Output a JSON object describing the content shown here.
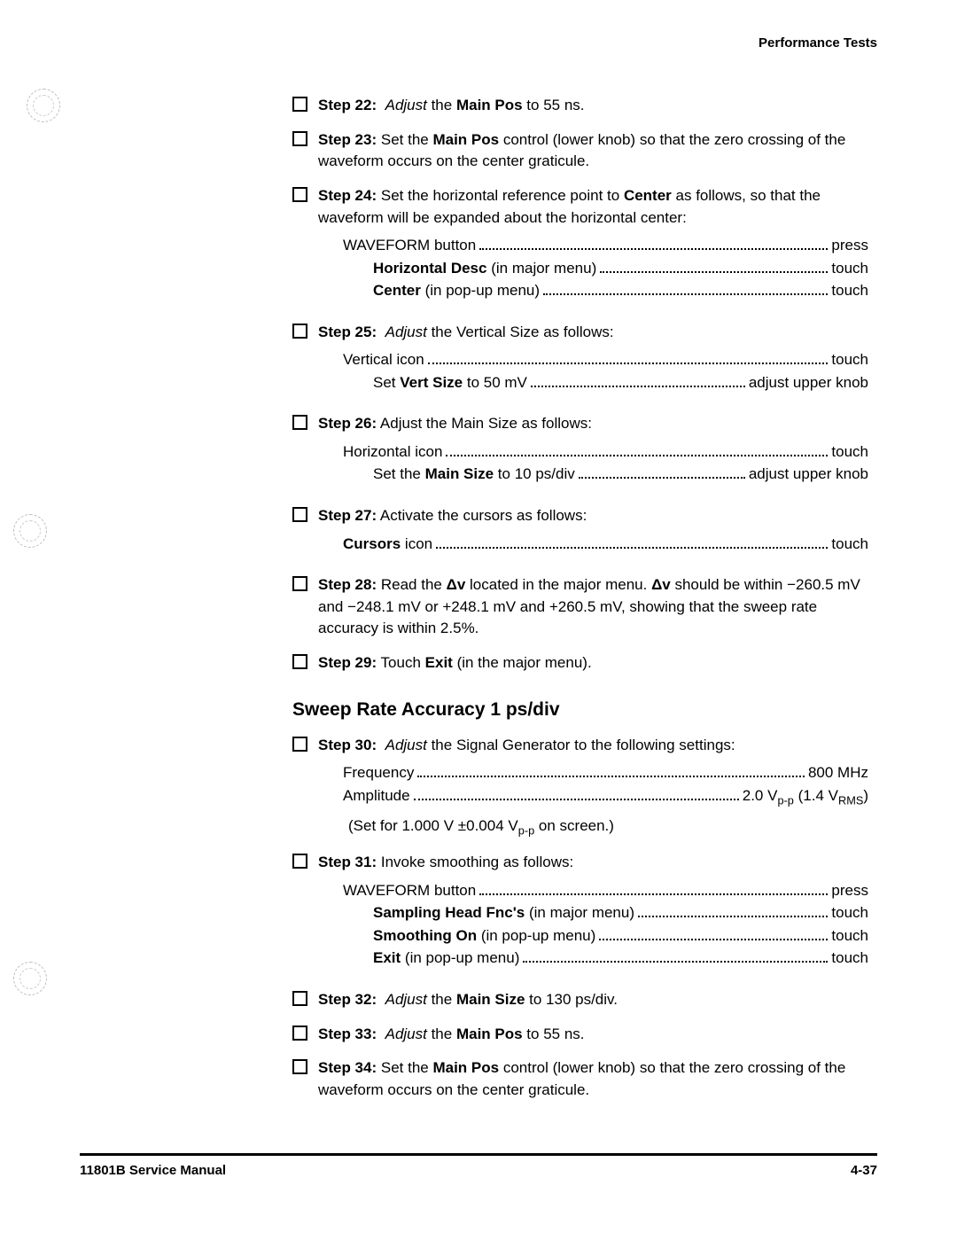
{
  "header": {
    "section": "Performance Tests"
  },
  "steps": {
    "s22": {
      "label": "Step 22:",
      "text1": "Adjust",
      "text2": " the ",
      "bold1": "Main Pos",
      "text3": " to 55 ns."
    },
    "s23": {
      "label": "Step 23:",
      "text1": "  Set the ",
      "bold1": "Main Pos",
      "text2": " control (lower knob) so that the zero crossing of the waveform occurs on the center graticule."
    },
    "s24": {
      "label": "Step 24:",
      "text1": "  Set the horizontal reference point to ",
      "bold1": "Center",
      "text2": " as follows, so that the waveform will be expanded about the horizontal center:"
    },
    "s24_settings": [
      {
        "label": "WAVEFORM button",
        "value": "press",
        "bold_label": false,
        "indent": false
      },
      {
        "label": "Horizontal Desc",
        "suffix": " (in major menu)",
        "value": "touch",
        "bold_label": true,
        "indent": true
      },
      {
        "label": "Center",
        "suffix": " (in pop-up menu)",
        "value": "touch",
        "bold_label": true,
        "indent": true
      }
    ],
    "s25": {
      "label": "Step 25:",
      "italic": "Adjust",
      "text": " the Vertical Size as follows:"
    },
    "s25_settings": [
      {
        "label": "Vertical icon",
        "value": "touch",
        "indent": false
      },
      {
        "label_pre": "Set ",
        "label_bold": "Vert Size",
        "label_post": " to 50 mV",
        "value": "adjust upper knob",
        "indent": true
      }
    ],
    "s26": {
      "label": "Step 26:",
      "text": "  Adjust the Main Size as follows:"
    },
    "s26_settings": [
      {
        "label": "Horizontal icon",
        "value": "touch",
        "indent": false
      },
      {
        "label_pre": "Set the ",
        "label_bold": "Main Size",
        "label_post": " to 10 ps/div",
        "value": "adjust upper knob",
        "indent": true
      }
    ],
    "s27": {
      "label": "Step 27:",
      "text": "  Activate the cursors as follows:"
    },
    "s27_settings": [
      {
        "label_bold": "Cursors",
        "label_post": " icon",
        "value": "touch",
        "indent": false
      }
    ],
    "s28": {
      "label": "Step 28:",
      "text1": "  Read the ",
      "bold1": "Δv",
      "text2": " located in the major menu. ",
      "bold2": "Δv",
      "text3": " should be within −260.5 mV and −248.1 mV or +248.1 mV and +260.5 mV, showing that the sweep rate accuracy is within 2.5%."
    },
    "s29": {
      "label": "Step 29:",
      "text1": "  Touch ",
      "bold1": "Exit",
      "text2": " (in the major menu)."
    },
    "section2": "Sweep Rate Accuracy 1 ps/div",
    "s30": {
      "label": "Step 30:",
      "italic": "Adjust",
      "text": " the Signal Generator to the following settings:"
    },
    "s30_settings": [
      {
        "label": "Frequency",
        "value": "800 MHz",
        "indent": false
      },
      {
        "label": "Amplitude",
        "value_html": "2.0 V<span class=\"sub\">p-p</span> (1.4 V<span class=\"sub\">RMS</span>)",
        "indent": false
      }
    ],
    "s30_note": "(Set for 1.000 V ±0.004 V<span class=\"sub\">p-p</span> on screen.)",
    "s31": {
      "label": "Step 31:",
      "text": "  Invoke smoothing as follows:"
    },
    "s31_settings": [
      {
        "label": "WAVEFORM button",
        "value": "press",
        "indent": false
      },
      {
        "label_bold": "Sampling Head Fnc's",
        "label_post": " (in major menu)",
        "value": "touch",
        "indent": true
      },
      {
        "label_bold": "Smoothing On",
        "label_post": " (in pop-up menu)",
        "value": "touch",
        "indent": true
      },
      {
        "label_bold": "Exit",
        "label_post": " (in pop-up menu)",
        "value": "touch",
        "indent": true
      }
    ],
    "s32": {
      "label": "Step 32:",
      "italic": "Adjust",
      "text1": " the ",
      "bold1": "Main Size",
      "text2": " to 130 ps/div."
    },
    "s33": {
      "label": "Step 33:",
      "italic": "Adjust",
      "text1": " the ",
      "bold1": "Main Pos",
      "text2": " to 55 ns."
    },
    "s34": {
      "label": "Step 34:",
      "text1": "  Set the ",
      "bold1": "Main Pos",
      "text2": " control (lower knob) so that the zero crossing of the waveform occurs on the center graticule."
    }
  },
  "footer": {
    "left": "11801B Service Manual",
    "right": "4-37"
  }
}
